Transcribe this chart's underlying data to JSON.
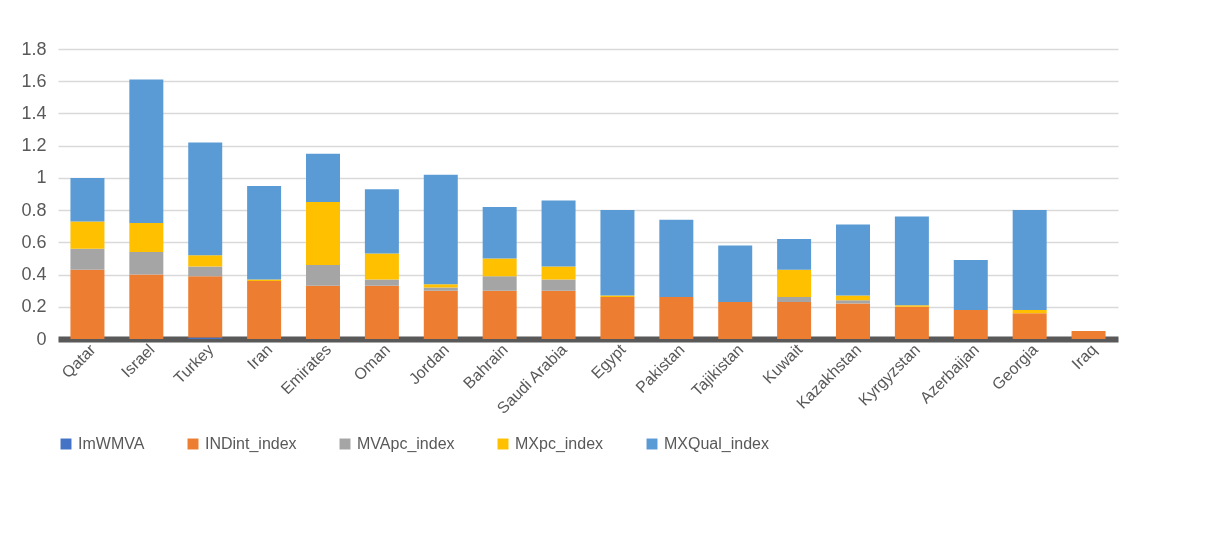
{
  "chart_data": {
    "type": "bar",
    "stacked": true,
    "legend": "bottom",
    "grid": "y",
    "categories": [
      "Qatar",
      "Israel",
      "Turkey",
      "Iran",
      "Emirates",
      "Oman",
      "Jordan",
      "Bahrain",
      "Saudi Arabia",
      "Egypt",
      "Pakistan",
      "Tajikistan",
      "Kuwait",
      "Kazakhstan",
      "Kyrgyzstan",
      "Azerbaijan",
      "Georgia",
      "Iraq"
    ],
    "ylim": [
      0,
      1.8
    ],
    "yticks": [
      0,
      0.2,
      0.4,
      0.6,
      0.8,
      1,
      1.2,
      1.4,
      1.6,
      1.8
    ],
    "series": [
      {
        "name": "ImWMVA",
        "color": "#4472c4",
        "values": [
          0,
          0,
          0.01,
          0,
          0,
          0,
          0,
          0,
          0,
          0,
          0,
          0,
          0,
          0,
          0,
          0,
          0,
          0
        ]
      },
      {
        "name": "INDint_index",
        "color": "#ed7d31",
        "values": [
          0.43,
          0.4,
          0.38,
          0.36,
          0.33,
          0.33,
          0.3,
          0.3,
          0.3,
          0.26,
          0.26,
          0.23,
          0.23,
          0.22,
          0.2,
          0.18,
          0.16,
          0.05
        ]
      },
      {
        "name": "MVApc_index",
        "color": "#a5a5a5",
        "values": [
          0.13,
          0.14,
          0.06,
          null,
          0.13,
          0.04,
          0.02,
          0.09,
          0.07,
          null,
          0,
          0,
          0.03,
          0.02,
          0,
          0,
          0,
          0
        ]
      },
      {
        "name": "MXpc_index",
        "color": "#ffc000",
        "values": [
          0.17,
          0.18,
          0.07,
          0.01,
          0.39,
          0.16,
          0.02,
          0.11,
          0.08,
          0.01,
          0,
          0,
          0.17,
          0.03,
          0.01,
          0,
          0.02,
          0
        ]
      },
      {
        "name": "MXQual_index",
        "color": "#5b9bd5",
        "values": [
          0.27,
          0.89,
          0.7,
          0.58,
          0.3,
          0.4,
          0.68,
          0.32,
          0.41,
          0.53,
          0.48,
          0.35,
          0.19,
          0.44,
          0.55,
          0.31,
          0.62,
          0
        ]
      }
    ]
  }
}
